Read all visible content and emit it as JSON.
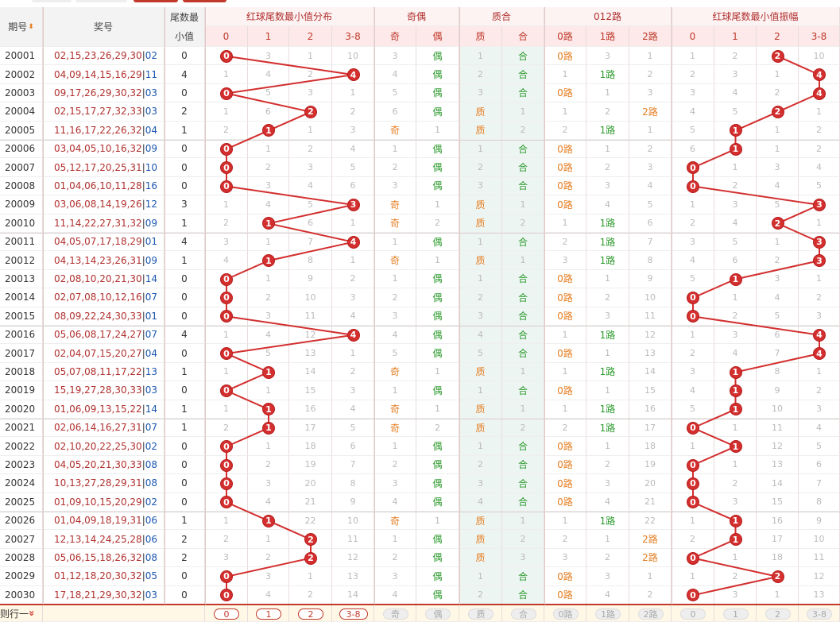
{
  "header": {
    "period_label": "期号",
    "draw_label": "奖号",
    "min_label_1": "尾数最",
    "min_label_2": "小值",
    "groups": [
      "红球尾数最小值分布",
      "奇偶",
      "质合",
      "012路",
      "红球尾数最小值振幅"
    ],
    "dist_cols": [
      "0",
      "1",
      "2",
      "3-8"
    ],
    "oe_cols": [
      "奇",
      "偶"
    ],
    "pc_cols": [
      "质",
      "合"
    ],
    "lu_cols": [
      "0路",
      "1路",
      "2路"
    ],
    "amp_cols": [
      "0",
      "1",
      "2",
      "3-8"
    ],
    "sort_icon": "sort-arrows-icon"
  },
  "rows": [
    {
      "p": "20001",
      "r": "02,15,23,26,29,30",
      "b": "02",
      "m": "0",
      "d": [
        "0",
        "3",
        "1",
        "10"
      ],
      "oe": [
        "3",
        "偶"
      ],
      "pc": [
        "1",
        "合"
      ],
      "lu": [
        "0路",
        "3",
        "1"
      ],
      "amp": [
        "1",
        "2",
        "2",
        "10"
      ]
    },
    {
      "p": "20002",
      "r": "04,09,14,15,16,29",
      "b": "11",
      "m": "4",
      "d": [
        "1",
        "4",
        "2",
        "4"
      ],
      "oe": [
        "4",
        "偶"
      ],
      "pc": [
        "2",
        "合"
      ],
      "lu": [
        "1",
        "1路",
        "2"
      ],
      "amp": [
        "2",
        "3",
        "1",
        "4"
      ]
    },
    {
      "p": "20003",
      "r": "09,17,26,29,30,32",
      "b": "03",
      "m": "0",
      "d": [
        "0",
        "5",
        "3",
        "1"
      ],
      "oe": [
        "5",
        "偶"
      ],
      "pc": [
        "3",
        "合"
      ],
      "lu": [
        "0路",
        "1",
        "3"
      ],
      "amp": [
        "3",
        "4",
        "2",
        "4"
      ]
    },
    {
      "p": "20004",
      "r": "02,15,17,27,32,33",
      "b": "03",
      "m": "2",
      "d": [
        "1",
        "6",
        "2",
        "2"
      ],
      "oe": [
        "6",
        "偶"
      ],
      "pc": [
        "质",
        "1"
      ],
      "lu": [
        "1",
        "2",
        "2路"
      ],
      "amp": [
        "4",
        "5",
        "2",
        "1"
      ]
    },
    {
      "p": "20005",
      "r": "11,16,17,22,26,32",
      "b": "04",
      "m": "1",
      "d": [
        "2",
        "1",
        "1",
        "3"
      ],
      "oe": [
        "奇",
        "1"
      ],
      "pc": [
        "质",
        "2"
      ],
      "lu": [
        "2",
        "1路",
        "1"
      ],
      "amp": [
        "5",
        "1",
        "1",
        "2"
      ]
    },
    {
      "p": "20006",
      "r": "03,04,05,10,16,32",
      "b": "09",
      "m": "0",
      "d": [
        "0",
        "1",
        "2",
        "4"
      ],
      "oe": [
        "1",
        "偶"
      ],
      "pc": [
        "1",
        "合"
      ],
      "lu": [
        "0路",
        "1",
        "2"
      ],
      "amp": [
        "6",
        "1",
        "1",
        "2"
      ]
    },
    {
      "p": "20007",
      "r": "05,12,17,20,25,31",
      "b": "10",
      "m": "0",
      "d": [
        "0",
        "2",
        "3",
        "5"
      ],
      "oe": [
        "2",
        "偶"
      ],
      "pc": [
        "2",
        "合"
      ],
      "lu": [
        "0路",
        "2",
        "3"
      ],
      "amp": [
        "0",
        "1",
        "3",
        "4"
      ]
    },
    {
      "p": "20008",
      "r": "01,04,06,10,11,28",
      "b": "16",
      "m": "0",
      "d": [
        "0",
        "3",
        "4",
        "6"
      ],
      "oe": [
        "3",
        "偶"
      ],
      "pc": [
        "3",
        "合"
      ],
      "lu": [
        "0路",
        "3",
        "4"
      ],
      "amp": [
        "0",
        "2",
        "4",
        "5"
      ]
    },
    {
      "p": "20009",
      "r": "03,06,08,14,19,26",
      "b": "12",
      "m": "3",
      "d": [
        "1",
        "4",
        "5",
        "3"
      ],
      "oe": [
        "奇",
        "1"
      ],
      "pc": [
        "质",
        "1"
      ],
      "lu": [
        "0路",
        "4",
        "5"
      ],
      "amp": [
        "1",
        "3",
        "5",
        "3"
      ]
    },
    {
      "p": "20010",
      "r": "11,14,22,27,31,32",
      "b": "09",
      "m": "1",
      "d": [
        "2",
        "1",
        "6",
        "1"
      ],
      "oe": [
        "奇",
        "2"
      ],
      "pc": [
        "质",
        "2"
      ],
      "lu": [
        "1",
        "1路",
        "6"
      ],
      "amp": [
        "2",
        "4",
        "2",
        "1"
      ]
    },
    {
      "p": "20011",
      "r": "04,05,07,17,18,29",
      "b": "01",
      "m": "4",
      "d": [
        "3",
        "1",
        "7",
        "4"
      ],
      "oe": [
        "1",
        "偶"
      ],
      "pc": [
        "1",
        "合"
      ],
      "lu": [
        "2",
        "1路",
        "7"
      ],
      "amp": [
        "3",
        "5",
        "1",
        "3"
      ]
    },
    {
      "p": "20012",
      "r": "04,13,14,23,26,31",
      "b": "09",
      "m": "1",
      "d": [
        "4",
        "1",
        "8",
        "1"
      ],
      "oe": [
        "奇",
        "1"
      ],
      "pc": [
        "质",
        "1"
      ],
      "lu": [
        "3",
        "1路",
        "8"
      ],
      "amp": [
        "4",
        "6",
        "2",
        "3"
      ]
    },
    {
      "p": "20013",
      "r": "02,08,10,20,21,30",
      "b": "14",
      "m": "0",
      "d": [
        "0",
        "1",
        "9",
        "2"
      ],
      "oe": [
        "1",
        "偶"
      ],
      "pc": [
        "1",
        "合"
      ],
      "lu": [
        "0路",
        "1",
        "9"
      ],
      "amp": [
        "5",
        "1",
        "3",
        "1"
      ]
    },
    {
      "p": "20014",
      "r": "02,07,08,10,12,16",
      "b": "07",
      "m": "0",
      "d": [
        "0",
        "2",
        "10",
        "3"
      ],
      "oe": [
        "2",
        "偶"
      ],
      "pc": [
        "2",
        "合"
      ],
      "lu": [
        "0路",
        "2",
        "10"
      ],
      "amp": [
        "0",
        "1",
        "4",
        "2"
      ]
    },
    {
      "p": "20015",
      "r": "08,09,22,24,30,33",
      "b": "01",
      "m": "0",
      "d": [
        "0",
        "3",
        "11",
        "4"
      ],
      "oe": [
        "3",
        "偶"
      ],
      "pc": [
        "3",
        "合"
      ],
      "lu": [
        "0路",
        "3",
        "11"
      ],
      "amp": [
        "0",
        "2",
        "5",
        "3"
      ]
    },
    {
      "p": "20016",
      "r": "05,06,08,17,24,27",
      "b": "07",
      "m": "4",
      "d": [
        "1",
        "4",
        "12",
        "4"
      ],
      "oe": [
        "4",
        "偶"
      ],
      "pc": [
        "4",
        "合"
      ],
      "lu": [
        "1",
        "1路",
        "12"
      ],
      "amp": [
        "1",
        "3",
        "6",
        "4"
      ]
    },
    {
      "p": "20017",
      "r": "02,04,07,15,20,27",
      "b": "04",
      "m": "0",
      "d": [
        "0",
        "5",
        "13",
        "1"
      ],
      "oe": [
        "5",
        "偶"
      ],
      "pc": [
        "5",
        "合"
      ],
      "lu": [
        "0路",
        "1",
        "13"
      ],
      "amp": [
        "2",
        "4",
        "7",
        "4"
      ]
    },
    {
      "p": "20018",
      "r": "05,07,08,11,17,22",
      "b": "13",
      "m": "1",
      "d": [
        "1",
        "1",
        "14",
        "2"
      ],
      "oe": [
        "奇",
        "1"
      ],
      "pc": [
        "质",
        "1"
      ],
      "lu": [
        "1",
        "1路",
        "14"
      ],
      "amp": [
        "3",
        "1",
        "8",
        "1"
      ]
    },
    {
      "p": "20019",
      "r": "15,19,27,28,30,33",
      "b": "03",
      "m": "0",
      "d": [
        "0",
        "1",
        "15",
        "3"
      ],
      "oe": [
        "1",
        "偶"
      ],
      "pc": [
        "1",
        "合"
      ],
      "lu": [
        "0路",
        "1",
        "15"
      ],
      "amp": [
        "4",
        "1",
        "9",
        "2"
      ]
    },
    {
      "p": "20020",
      "r": "01,06,09,13,15,22",
      "b": "14",
      "m": "1",
      "d": [
        "1",
        "1",
        "16",
        "4"
      ],
      "oe": [
        "奇",
        "1"
      ],
      "pc": [
        "质",
        "1"
      ],
      "lu": [
        "1",
        "1路",
        "16"
      ],
      "amp": [
        "5",
        "1",
        "10",
        "3"
      ]
    },
    {
      "p": "20021",
      "r": "02,06,14,16,27,31",
      "b": "07",
      "m": "1",
      "d": [
        "2",
        "1",
        "17",
        "5"
      ],
      "oe": [
        "奇",
        "2"
      ],
      "pc": [
        "质",
        "2"
      ],
      "lu": [
        "2",
        "1路",
        "17"
      ],
      "amp": [
        "0",
        "1",
        "11",
        "4"
      ]
    },
    {
      "p": "20022",
      "r": "02,10,20,22,25,30",
      "b": "02",
      "m": "0",
      "d": [
        "0",
        "1",
        "18",
        "6"
      ],
      "oe": [
        "1",
        "偶"
      ],
      "pc": [
        "1",
        "合"
      ],
      "lu": [
        "0路",
        "1",
        "18"
      ],
      "amp": [
        "1",
        "1",
        "12",
        "5"
      ]
    },
    {
      "p": "20023",
      "r": "04,05,20,21,30,33",
      "b": "08",
      "m": "0",
      "d": [
        "0",
        "2",
        "19",
        "7"
      ],
      "oe": [
        "2",
        "偶"
      ],
      "pc": [
        "2",
        "合"
      ],
      "lu": [
        "0路",
        "2",
        "19"
      ],
      "amp": [
        "0",
        "1",
        "13",
        "6"
      ]
    },
    {
      "p": "20024",
      "r": "10,13,27,28,29,31",
      "b": "08",
      "m": "0",
      "d": [
        "0",
        "3",
        "20",
        "8"
      ],
      "oe": [
        "3",
        "偶"
      ],
      "pc": [
        "3",
        "合"
      ],
      "lu": [
        "0路",
        "3",
        "20"
      ],
      "amp": [
        "0",
        "2",
        "14",
        "7"
      ]
    },
    {
      "p": "20025",
      "r": "01,09,10,15,20,29",
      "b": "02",
      "m": "0",
      "d": [
        "0",
        "4",
        "21",
        "9"
      ],
      "oe": [
        "4",
        "偶"
      ],
      "pc": [
        "4",
        "合"
      ],
      "lu": [
        "0路",
        "4",
        "21"
      ],
      "amp": [
        "0",
        "3",
        "15",
        "8"
      ]
    },
    {
      "p": "20026",
      "r": "01,04,09,18,19,31",
      "b": "06",
      "m": "1",
      "d": [
        "1",
        "1",
        "22",
        "10"
      ],
      "oe": [
        "奇",
        "1"
      ],
      "pc": [
        "质",
        "1"
      ],
      "lu": [
        "1",
        "1路",
        "22"
      ],
      "amp": [
        "1",
        "1",
        "16",
        "9"
      ]
    },
    {
      "p": "20027",
      "r": "12,13,14,24,25,28",
      "b": "06",
      "m": "2",
      "d": [
        "2",
        "1",
        "2",
        "11"
      ],
      "oe": [
        "1",
        "偶"
      ],
      "pc": [
        "质",
        "2"
      ],
      "lu": [
        "2",
        "1",
        "2路"
      ],
      "amp": [
        "2",
        "1",
        "17",
        "10"
      ]
    },
    {
      "p": "20028",
      "r": "05,06,15,18,26,32",
      "b": "08",
      "m": "2",
      "d": [
        "3",
        "2",
        "2",
        "12"
      ],
      "oe": [
        "2",
        "偶"
      ],
      "pc": [
        "质",
        "3"
      ],
      "lu": [
        "3",
        "2",
        "2路"
      ],
      "amp": [
        "0",
        "1",
        "18",
        "11"
      ]
    },
    {
      "p": "20029",
      "r": "01,12,18,20,30,32",
      "b": "05",
      "m": "0",
      "d": [
        "0",
        "3",
        "1",
        "13"
      ],
      "oe": [
        "3",
        "偶"
      ],
      "pc": [
        "1",
        "合"
      ],
      "lu": [
        "0路",
        "3",
        "1"
      ],
      "amp": [
        "1",
        "2",
        "2",
        "12"
      ]
    },
    {
      "p": "20030",
      "r": "17,18,21,29,30,32",
      "b": "03",
      "m": "0",
      "d": [
        "0",
        "4",
        "2",
        "14"
      ],
      "oe": [
        "4",
        "偶"
      ],
      "pc": [
        "2",
        "合"
      ],
      "lu": [
        "0路",
        "4",
        "2"
      ],
      "amp": [
        "0",
        "3",
        "1",
        "13"
      ]
    }
  ],
  "dist_hit_col": [
    0,
    3,
    0,
    2,
    1,
    0,
    0,
    0,
    3,
    1,
    3,
    1,
    0,
    0,
    0,
    3,
    0,
    1,
    0,
    1,
    1,
    0,
    0,
    0,
    0,
    1,
    2,
    2,
    0,
    0
  ],
  "dist_hit_val": [
    "0",
    "4",
    "0",
    "2",
    "1",
    "0",
    "0",
    "0",
    "3",
    "1",
    "4",
    "1",
    "0",
    "0",
    "0",
    "4",
    "0",
    "1",
    "0",
    "1",
    "1",
    "0",
    "0",
    "0",
    "0",
    "1",
    "2",
    "2",
    "0",
    "0"
  ],
  "amp_hit_col": [
    2,
    3,
    3,
    2,
    1,
    1,
    0,
    0,
    3,
    2,
    3,
    3,
    1,
    0,
    0,
    3,
    3,
    1,
    1,
    1,
    0,
    1,
    0,
    0,
    0,
    1,
    1,
    0,
    2,
    0
  ],
  "amp_hit_val": [
    "2",
    "4",
    "4",
    "2",
    "1",
    "1",
    "0",
    "0",
    "3",
    "2",
    "3",
    "3",
    "1",
    "0",
    "0",
    "4",
    "4",
    "1",
    "1",
    "1",
    "0",
    "1",
    "0",
    "0",
    "0",
    "1",
    "1",
    "0",
    "2",
    "0"
  ],
  "footer": {
    "label": "则行一",
    "label_icon": "double-chevron-down-icon",
    "dist_pills": [
      "0",
      "1",
      "2",
      "3-8"
    ],
    "oe_pills": [
      "奇",
      "偶"
    ],
    "pc_pills": [
      "质",
      "合"
    ],
    "lu_pills": [
      "0路",
      "1路",
      "2路"
    ],
    "amp_pills": [
      "0",
      "1",
      "2",
      "3-8"
    ]
  },
  "colors": {
    "accent": "#d32f2f",
    "header_bg": "#fde9e9",
    "tint": "#edf5f3",
    "footer_bg": "#fff8e6"
  }
}
